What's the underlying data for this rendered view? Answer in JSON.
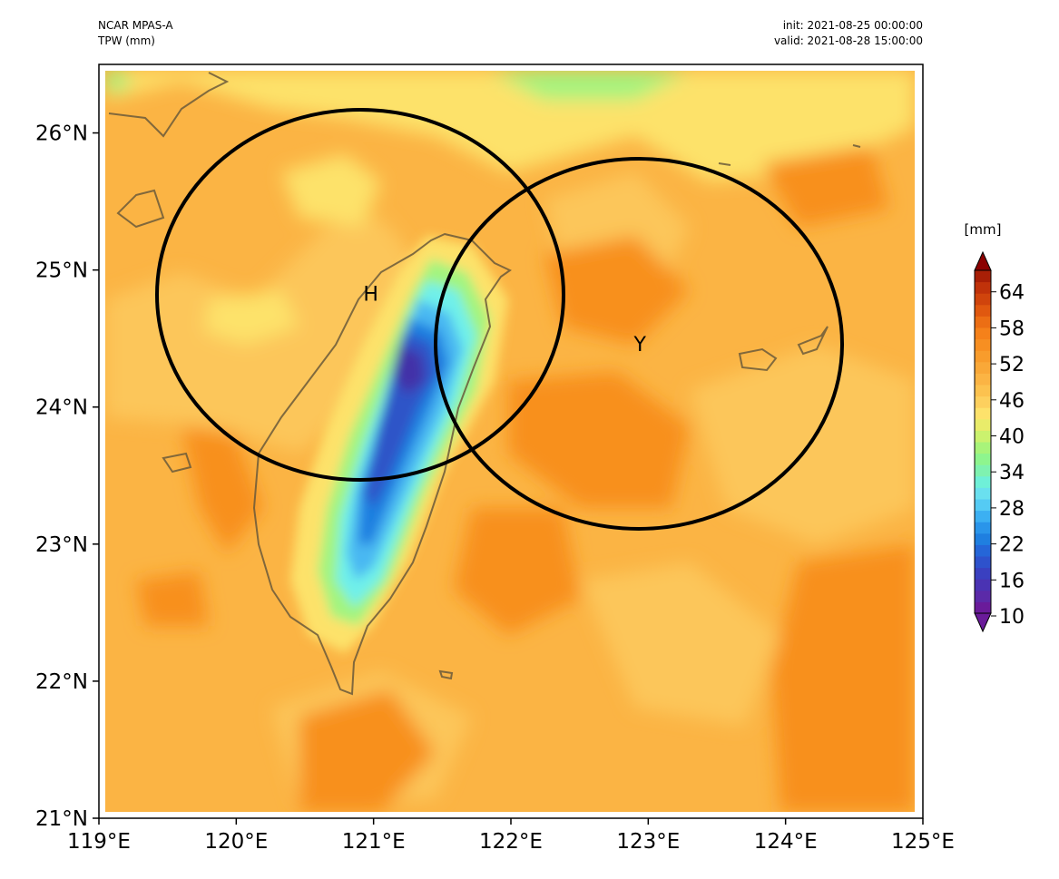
{
  "header": {
    "model": "NCAR MPAS-A",
    "field": "TPW (mm)",
    "init": "init: 2021-08-25 00:00:00",
    "valid": "valid: 2021-08-28 15:00:00"
  },
  "map": {
    "lon_ticks": [
      "119°E",
      "120°E",
      "121°E",
      "122°E",
      "123°E",
      "124°E",
      "125°E"
    ],
    "lat_ticks": [
      "21°N",
      "22°N",
      "23°N",
      "24°N",
      "25°N",
      "26°N"
    ],
    "markers": [
      {
        "label": "H",
        "lon": 120.98,
        "lat": 24.83
      },
      {
        "label": "Y",
        "lon": 122.94,
        "lat": 24.46
      }
    ]
  },
  "colorbar": {
    "unit": "[mm]",
    "labels": [
      "10",
      "16",
      "22",
      "28",
      "34",
      "40",
      "46",
      "52",
      "58",
      "64"
    ]
  },
  "colors": {
    "dry_extreme": "#6a1b9a",
    "low": "#2e3fb8",
    "mid_low": "#1f7fe0",
    "cyan": "#6ef0ec",
    "green": "#8ef27a",
    "yellow": "#fbe466",
    "light_orange": "#fcc24a",
    "orange": "#f9a22f",
    "deep_orange": "#f68b1c",
    "red": "#c4340c",
    "wet_extreme": "#8b0000"
  }
}
